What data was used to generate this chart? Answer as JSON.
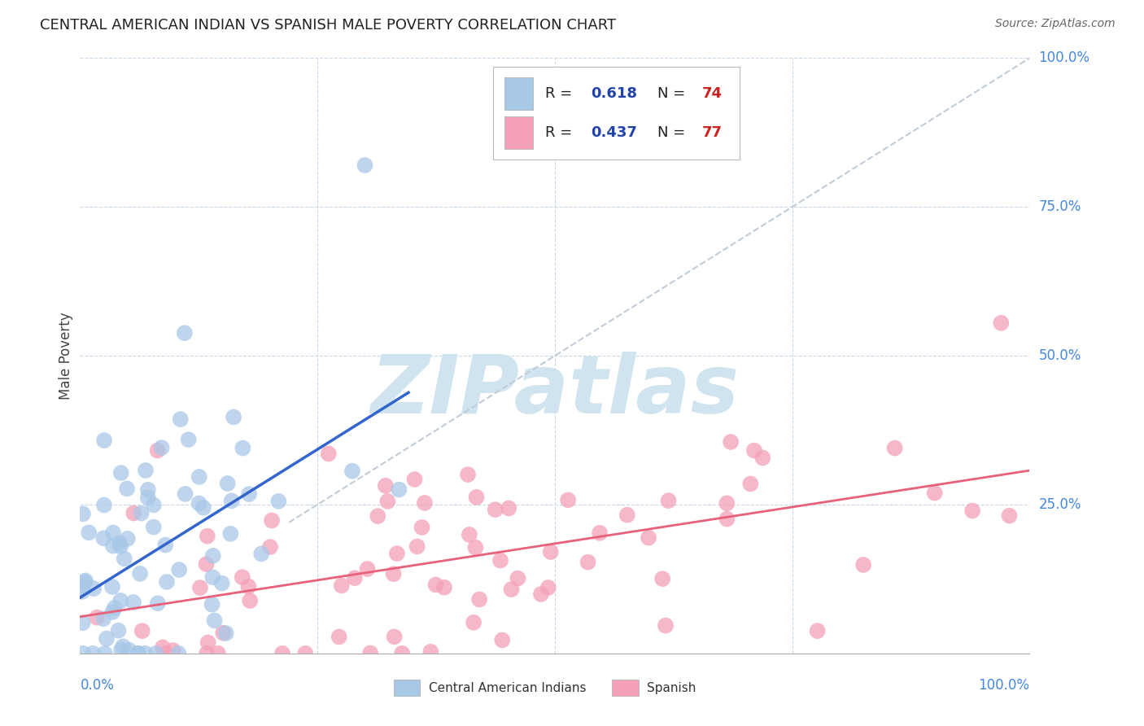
{
  "title": "CENTRAL AMERICAN INDIAN VS SPANISH MALE POVERTY CORRELATION CHART",
  "source": "Source: ZipAtlas.com",
  "ylabel": "Male Poverty",
  "blue_color": "#a8c8e8",
  "blue_edge_color": "#a8c8e8",
  "pink_color": "#f4a0b8",
  "pink_edge_color": "#f4a0b8",
  "blue_line_color": "#3366cc",
  "pink_line_color": "#e8607a",
  "diag_color": "#c0ccd8",
  "title_color": "#222222",
  "source_color": "#666666",
  "axis_label_color": "#4488dd",
  "grid_color": "#c8d8e8",
  "background_color": "#ffffff",
  "legend_R_color": "#2244aa",
  "legend_N_color": "#cc2222",
  "watermark_color": "#d0e4f0",
  "R_blue": "0.618",
  "N_blue": "74",
  "R_pink": "0.437",
  "N_pink": "77"
}
